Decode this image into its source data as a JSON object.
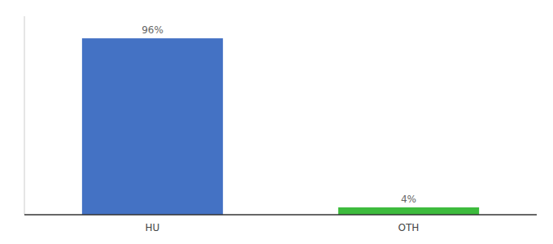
{
  "chart_data": {
    "type": "bar",
    "categories": [
      "HU",
      "OTH"
    ],
    "values": [
      96,
      4
    ],
    "value_labels": [
      "96%",
      "4%"
    ],
    "colors": [
      "#4472c4",
      "#3dbb3d"
    ],
    "ylim": [
      0,
      108
    ],
    "data_labels": true,
    "tick_labels": "x"
  }
}
